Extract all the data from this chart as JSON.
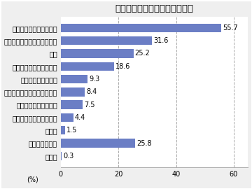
{
  "title": "冬用機能性インナーの利用状況",
  "categories": [
    "長袖の肌着（トップス）",
    "レギンス、スパッツ、タイツ",
    "靴下",
    "半袖の肌着（トップス）",
    "ももひき、ステテコ",
    "キャミソール、タンクトップ",
    "腹巻、オーバーパンツ",
    "ブラトップ（女性のみ）",
    "その他",
    "利用していない",
    "無回答"
  ],
  "values": [
    55.7,
    31.6,
    25.2,
    18.6,
    9.3,
    8.4,
    7.5,
    4.4,
    1.5,
    25.8,
    0.3
  ],
  "bar_color": "#6b7ec5",
  "title_fontsize": 9.5,
  "label_fontsize": 7.0,
  "value_fontsize": 7.0,
  "xlabel": "(%)",
  "xlim": [
    0,
    65
  ],
  "xticks": [
    0,
    20,
    40,
    60
  ],
  "background_color": "#efefef",
  "plot_background": "#ffffff",
  "border_color": "#aaaaaa"
}
